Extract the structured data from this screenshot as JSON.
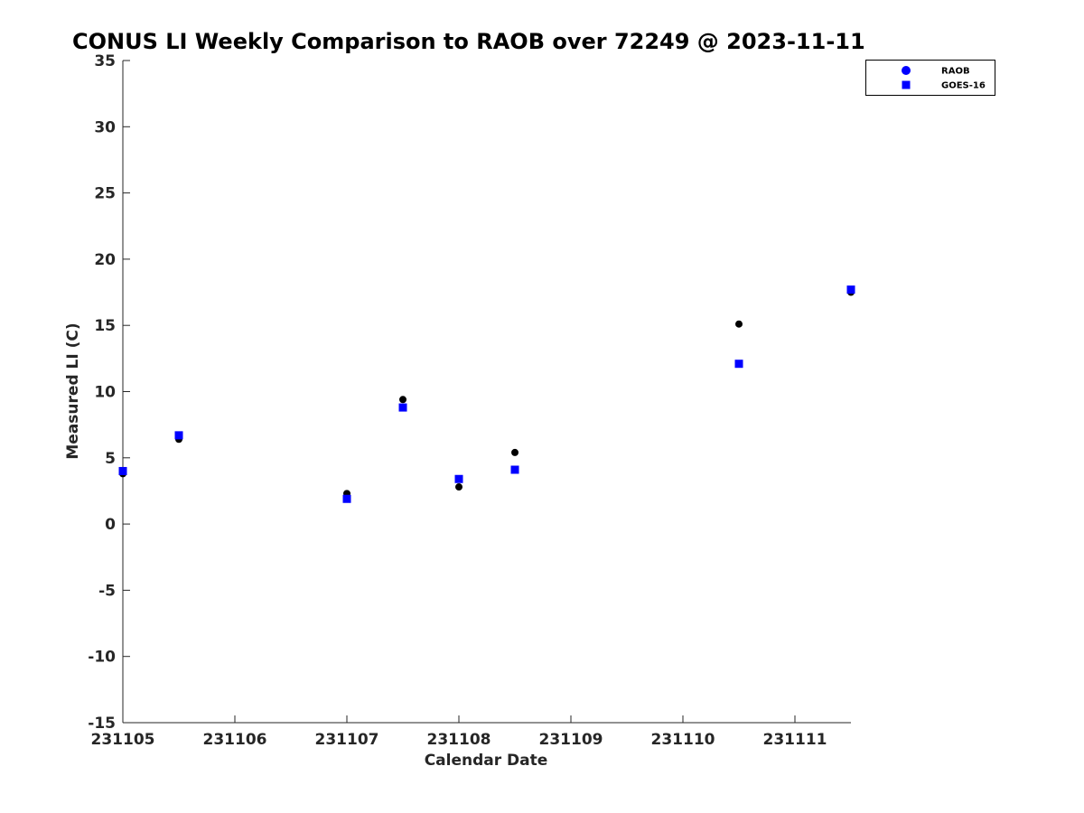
{
  "chart_data": {
    "type": "scatter",
    "title": "CONUS LI Weekly Comparison to RAOB over 72249 @ 2023-11-11",
    "xlabel": "Calendar Date",
    "ylabel": "Measured LI (C)",
    "x_ticks": [
      "231105",
      "231106",
      "231107",
      "231108",
      "231109",
      "231110",
      "231111"
    ],
    "y_ticks": [
      35,
      30,
      25,
      20,
      15,
      10,
      5,
      0,
      -5,
      -10,
      -15
    ],
    "xlim": [
      "231105",
      "231111 12Z"
    ],
    "ylim": [
      -15,
      35
    ],
    "grid": false,
    "legend_position": "top-right",
    "series": [
      {
        "name": "RAOB",
        "marker": "circle",
        "color": "#000000",
        "legend_color": "#0000ff",
        "points": [
          {
            "x": "231105 00Z",
            "y": 3.8
          },
          {
            "x": "231105 12Z",
            "y": 6.4
          },
          {
            "x": "231107 00Z",
            "y": 2.3
          },
          {
            "x": "231107 12Z",
            "y": 9.4
          },
          {
            "x": "231108 00Z",
            "y": 2.8
          },
          {
            "x": "231108 12Z",
            "y": 5.4
          },
          {
            "x": "231110 12Z",
            "y": 15.1
          },
          {
            "x": "231111 12Z",
            "y": 17.5
          }
        ]
      },
      {
        "name": "GOES-16",
        "marker": "square",
        "color": "#0000ff",
        "points": [
          {
            "x": "231105 00Z",
            "y": 4.0
          },
          {
            "x": "231105 12Z",
            "y": 6.7
          },
          {
            "x": "231107 00Z",
            "y": 1.9
          },
          {
            "x": "231107 12Z",
            "y": 8.8
          },
          {
            "x": "231108 00Z",
            "y": 3.4
          },
          {
            "x": "231108 12Z",
            "y": 4.1
          },
          {
            "x": "231110 12Z",
            "y": 12.1
          },
          {
            "x": "231111 12Z",
            "y": 17.7
          }
        ]
      }
    ]
  }
}
